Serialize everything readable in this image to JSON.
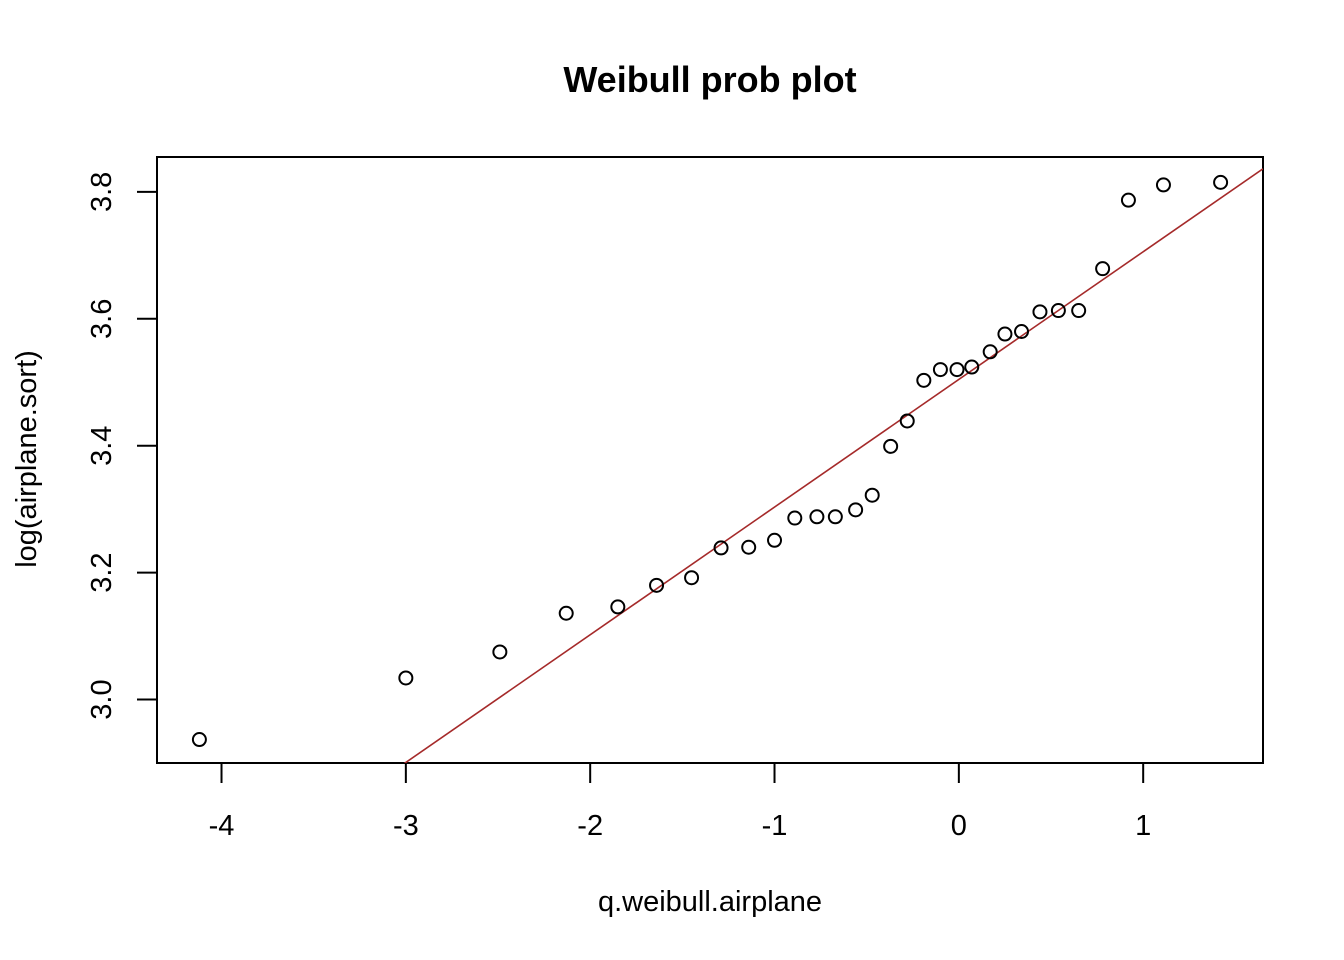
{
  "chart_data": {
    "type": "scatter",
    "title": "Weibull prob plot",
    "xlabel": "q.weibull.airplane",
    "ylabel": "log(airplane.sort)",
    "xlim": [
      -4.35,
      1.65
    ],
    "ylim": [
      2.9,
      3.855
    ],
    "xticks": [
      -4,
      -3,
      -2,
      -1,
      0,
      1
    ],
    "yticks": [
      3.0,
      3.2,
      3.4,
      3.6,
      3.8
    ],
    "xtick_labels": [
      "-4",
      "-3",
      "-2",
      "-1",
      "0",
      "1"
    ],
    "ytick_labels": [
      "3.0",
      "3.2",
      "3.4",
      "3.6",
      "3.8"
    ],
    "grid": false,
    "series": [
      {
        "marker": "open-circle",
        "color": "#000000",
        "x": [
          -4.12,
          -3.0,
          -2.49,
          -2.13,
          -1.85,
          -1.64,
          -1.45,
          -1.29,
          -1.14,
          -1.0,
          -0.89,
          -0.77,
          -0.67,
          -0.56,
          -0.47,
          -0.37,
          -0.28,
          -0.19,
          -0.1,
          -0.01,
          0.07,
          0.17,
          0.25,
          0.34,
          0.44,
          0.54,
          0.65,
          0.78,
          0.92,
          1.11,
          1.42
        ],
        "y": [
          2.937,
          3.034,
          3.075,
          3.136,
          3.146,
          3.18,
          3.192,
          3.239,
          3.24,
          3.251,
          3.286,
          3.288,
          3.288,
          3.299,
          3.322,
          3.399,
          3.439,
          3.503,
          3.52,
          3.52,
          3.524,
          3.548,
          3.576,
          3.58,
          3.611,
          3.613,
          3.613,
          3.679,
          3.787,
          3.811,
          3.815
        ]
      }
    ],
    "fit_line": {
      "color": "#a52a2a",
      "intercept": 3.5045,
      "slope": 0.2012
    }
  }
}
